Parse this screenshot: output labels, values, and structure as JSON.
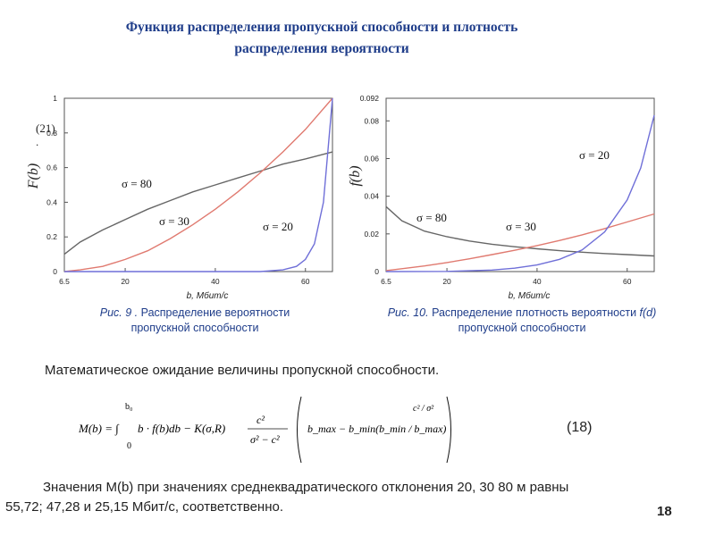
{
  "title": {
    "line1": "Функция распределения пропускной способности и плотность",
    "line2": "распределения вероятности"
  },
  "fig9": {
    "caption_num": "Рис. 9 .",
    "caption_line1": "Распределение вероятности",
    "caption_line2": "пропускной способности"
  },
  "fig10": {
    "caption_num": "Рис. 10.",
    "caption_line1": "Распределение плотность вероятности",
    "caption_fd": "f(d)",
    "caption_line2": "пропускной способности"
  },
  "ref21": "(21)",
  "ref21_dot": ".",
  "text_expectation": "Математическое ожидание величины пропускной способности.",
  "formula": {
    "lhs": "M(b) = ∫",
    "lower": "0",
    "upper": "b₀",
    "body": "b · f(b)db − K(σ,R)",
    "frac_num": "c²",
    "frac_den": "σ² − c²",
    "bracket": "b_max − b_min(b_min / b_max)",
    "exp": "c² / σ²"
  },
  "equation_number": "(18)",
  "conclusion_line1": "Значения M(b) при значениях среднеквадратического отклонения 20, 30 80 м равны",
  "conclusion_line2": "55,72; 47,28 и 25,15 Мбит/с, соответственно.",
  "page_number": "18",
  "chart_data": [
    {
      "type": "line",
      "ylabel": "F(b)",
      "xlabel": "b,  Мбит/с",
      "x_ticks": [
        "6.5",
        "20",
        "40",
        "60"
      ],
      "y_ticks": [
        "0",
        "0.2",
        "0.4",
        "0.6",
        "0.8",
        "1"
      ],
      "xlim": [
        6.5,
        66
      ],
      "ylim": [
        0,
        1
      ],
      "series": [
        {
          "name": "σ = 80",
          "color": "#666666",
          "x": [
            6.5,
            10,
            15,
            20,
            25,
            30,
            35,
            40,
            45,
            50,
            55,
            60,
            66
          ],
          "y": [
            0.1,
            0.17,
            0.24,
            0.3,
            0.36,
            0.41,
            0.46,
            0.5,
            0.54,
            0.58,
            0.62,
            0.65,
            0.69
          ]
        },
        {
          "name": "σ = 30",
          "color": "#e07a70",
          "x": [
            6.5,
            10,
            15,
            20,
            25,
            30,
            35,
            40,
            45,
            50,
            55,
            60,
            66
          ],
          "y": [
            0.0,
            0.01,
            0.03,
            0.07,
            0.12,
            0.19,
            0.27,
            0.36,
            0.46,
            0.57,
            0.69,
            0.82,
            1.0
          ]
        },
        {
          "name": "σ = 20",
          "color": "#6f6fd8",
          "x": [
            6.5,
            20,
            40,
            50,
            55,
            58,
            60,
            62,
            64,
            66
          ],
          "y": [
            0.0,
            0.0,
            0.0,
            0.0,
            0.01,
            0.03,
            0.07,
            0.16,
            0.4,
            1.0
          ]
        }
      ]
    },
    {
      "type": "line",
      "ylabel": "f(b)",
      "xlabel": "b,  Мбит/с",
      "x_ticks": [
        "6.5",
        "20",
        "40",
        "60"
      ],
      "y_ticks": [
        "0",
        "0.02",
        "0.04",
        "0.06",
        "0.08",
        "0.092"
      ],
      "xlim": [
        6.5,
        66
      ],
      "ylim": [
        0,
        0.092
      ],
      "series": [
        {
          "name": "σ = 80",
          "color": "#666666",
          "x": [
            6.5,
            10,
            15,
            20,
            25,
            30,
            35,
            40,
            45,
            50,
            55,
            60,
            66
          ],
          "y": [
            0.0345,
            0.027,
            0.0215,
            0.0185,
            0.0162,
            0.0145,
            0.0132,
            0.0121,
            0.0111,
            0.0103,
            0.0096,
            0.009,
            0.0083
          ]
        },
        {
          "name": "σ = 30",
          "color": "#e07a70",
          "x": [
            6.5,
            10,
            15,
            20,
            25,
            30,
            35,
            40,
            45,
            50,
            55,
            60,
            66
          ],
          "y": [
            0.0005,
            0.0015,
            0.003,
            0.0048,
            0.0068,
            0.009,
            0.0113,
            0.0138,
            0.0165,
            0.0195,
            0.0228,
            0.0263,
            0.0306
          ]
        },
        {
          "name": "σ = 20",
          "color": "#6f6fd8",
          "x": [
            6.5,
            20,
            30,
            35,
            40,
            45,
            50,
            55,
            60,
            63,
            66
          ],
          "y": [
            0.0,
            0.0001,
            0.0008,
            0.0018,
            0.0035,
            0.0065,
            0.0115,
            0.021,
            0.038,
            0.055,
            0.083
          ]
        }
      ]
    }
  ]
}
